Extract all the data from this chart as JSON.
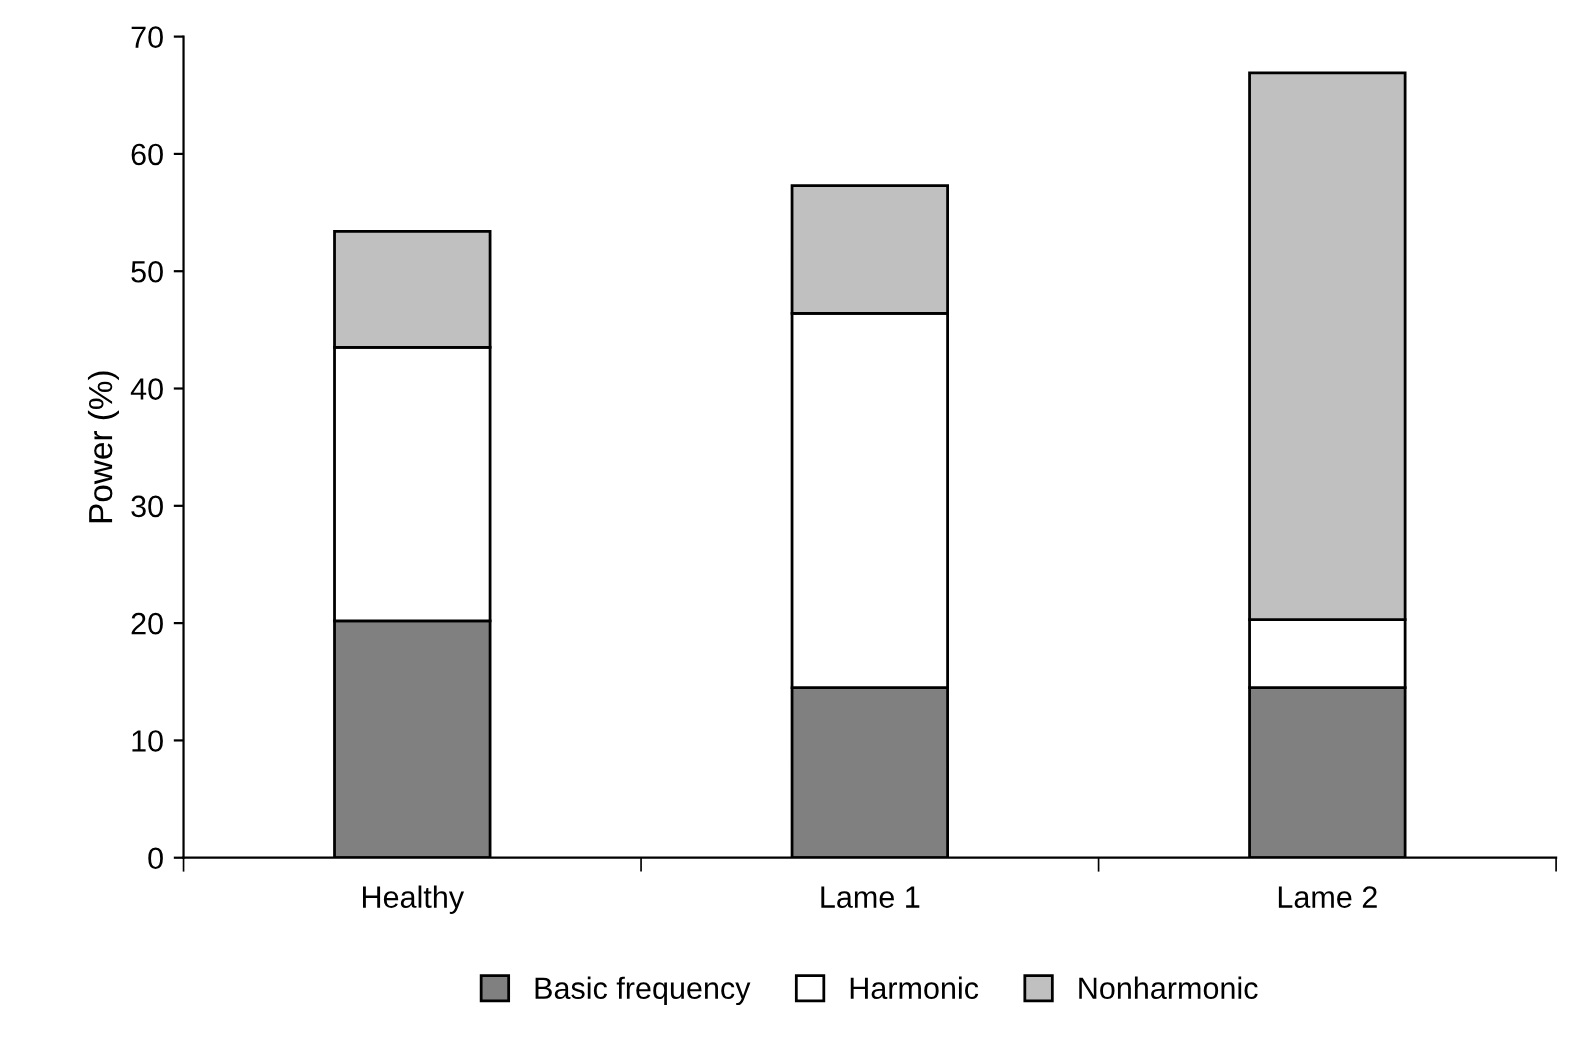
{
  "chart_data": {
    "type": "bar",
    "ylabel": "Power (%)",
    "categories": [
      "Healthy",
      "Lame 1",
      "Lame 2"
    ],
    "stacked": true,
    "series": [
      {
        "name": "Basic frequency",
        "color": "#808080",
        "values": [
          20.2,
          14.5,
          14.5
        ]
      },
      {
        "name": "Harmonic",
        "color": "#ffffff",
        "values": [
          23.3,
          31.9,
          5.8
        ]
      },
      {
        "name": "Nonharmonic",
        "color": "#c0c0c0",
        "values": [
          9.9,
          10.9,
          46.6
        ]
      }
    ],
    "ylim": [
      0,
      70
    ],
    "yticks": [
      0,
      10,
      20,
      30,
      40,
      50,
      60,
      70
    ],
    "grid": false,
    "legend": "bottom"
  }
}
